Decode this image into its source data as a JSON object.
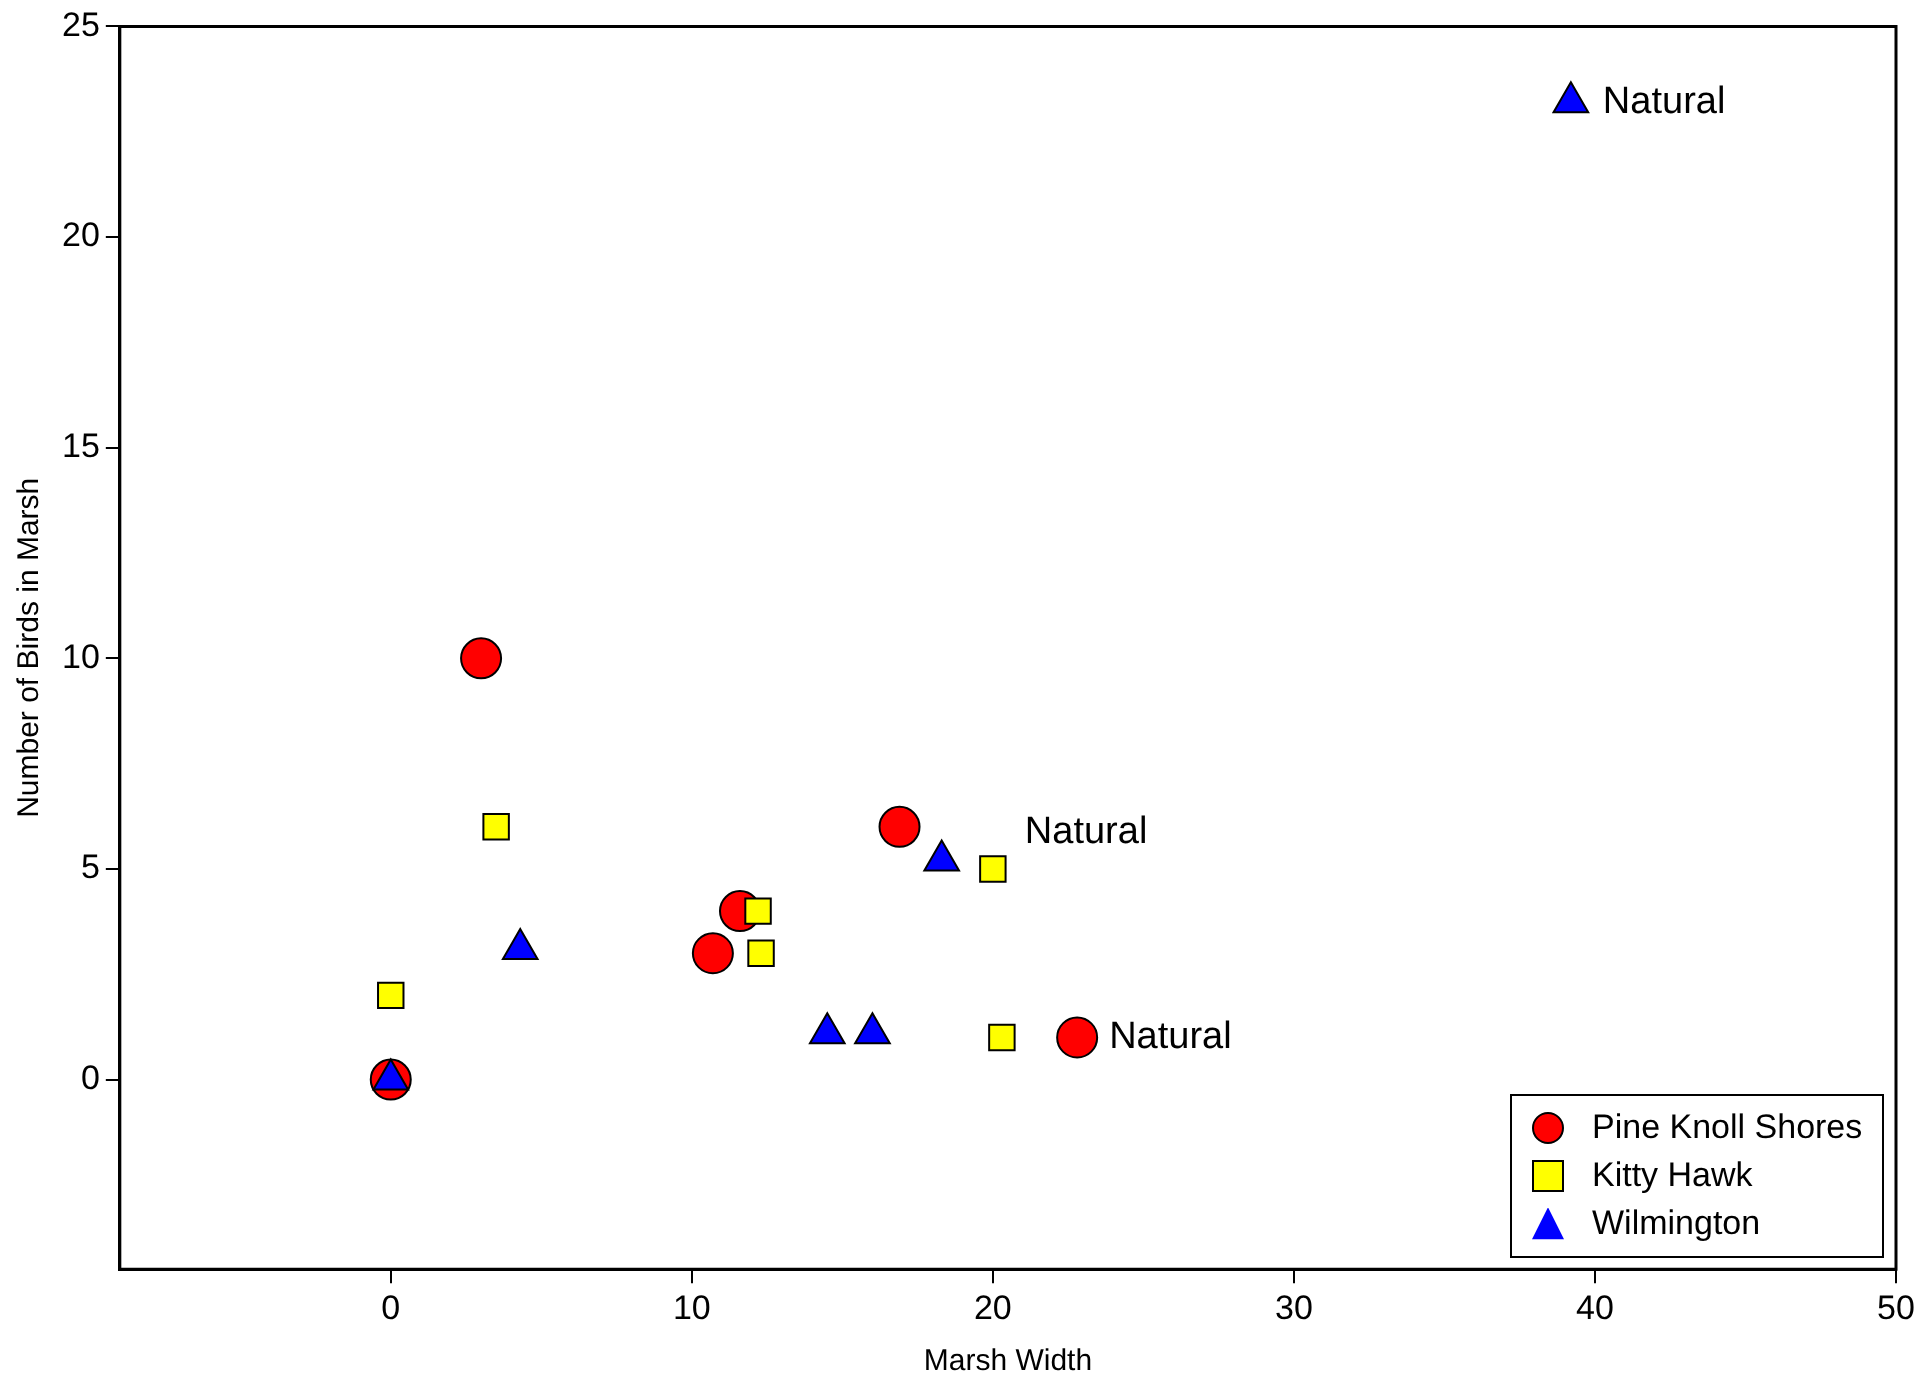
{
  "chart_data": {
    "type": "scatter",
    "xlabel": "Marsh Width",
    "ylabel": "Number of Birds in Marsh",
    "xlim": [
      -9,
      50
    ],
    "xticks": [
      0,
      10,
      20,
      30,
      40,
      50
    ],
    "ylim": [
      -4.5,
      25
    ],
    "yticks": [
      0,
      5,
      10,
      15,
      20,
      25
    ],
    "grid": false,
    "legend": "bottom right",
    "series": [
      {
        "name": "Pine Knoll Shores",
        "color": "#ff0000",
        "marker": "circle",
        "x": [
          0,
          3,
          10.7,
          11.6,
          16.9,
          22.8
        ],
        "values": [
          0,
          10,
          3,
          4,
          6,
          1
        ]
      },
      {
        "name": "Kitty Hawk",
        "color": "#ffff00",
        "marker": "square",
        "x": [
          0,
          3.5,
          12.2,
          12.3,
          20,
          20.3
        ],
        "values": [
          2,
          6,
          4,
          3,
          5,
          1
        ]
      },
      {
        "name": "Wilmington",
        "color": "#0000ff",
        "marker": "triangle",
        "x": [
          0,
          4.3,
          14.5,
          16,
          18.3,
          39.2
        ],
        "values": [
          0,
          3.1,
          1.1,
          1.1,
          5.2,
          23.2
        ]
      }
    ],
    "annotations": [
      {
        "text": "Natural",
        "x": 39.2,
        "y": 23.2
      },
      {
        "text": "Natural",
        "x": 20,
        "y": 5
      },
      {
        "text": "Natural",
        "x": 22.8,
        "y": 1
      }
    ]
  }
}
